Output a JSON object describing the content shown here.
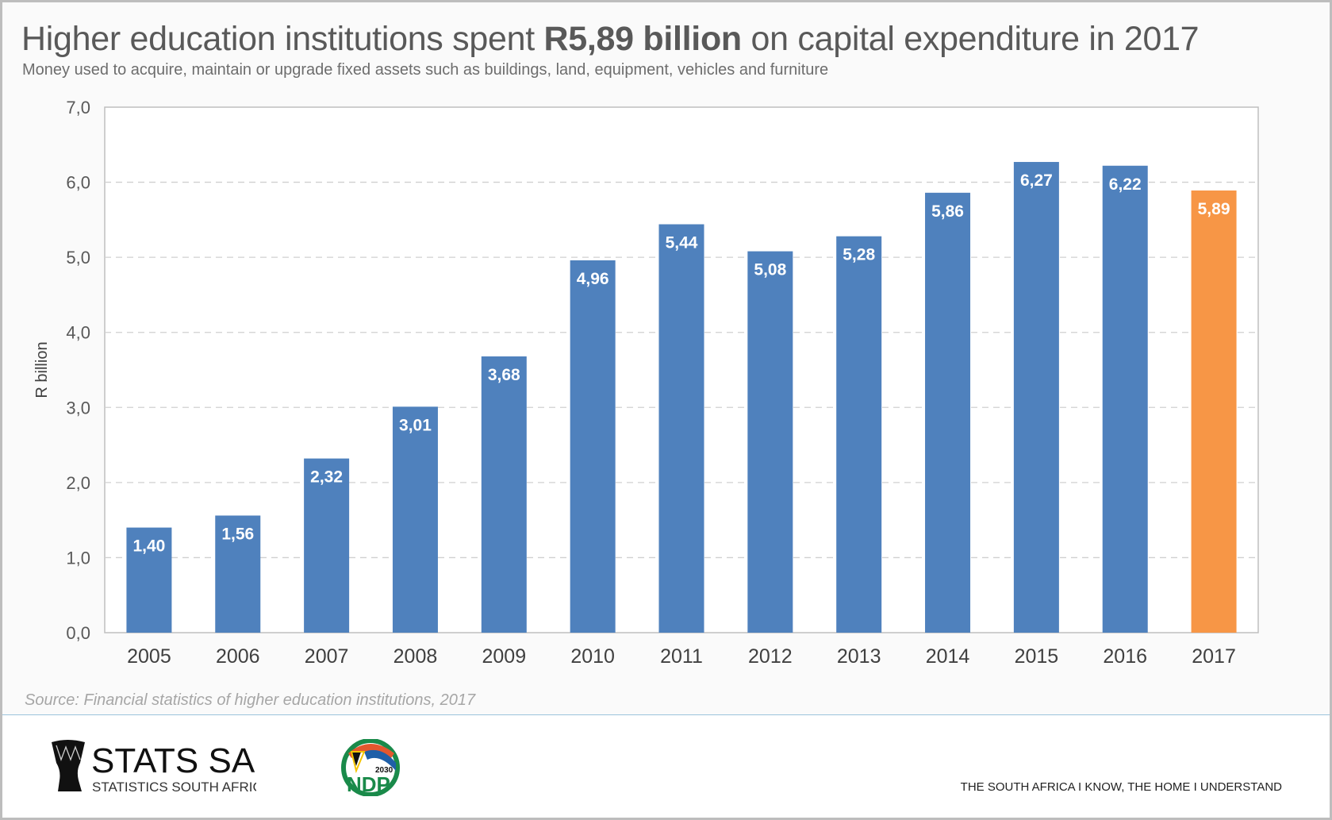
{
  "header": {
    "title_pre": "Higher education institutions spent ",
    "title_bold": "R5,89 billion",
    "title_post": " on capital expenditure in 2017",
    "subtitle": "Money used to acquire, maintain or upgrade fixed assets such as buildings, land, equipment, vehicles and furniture"
  },
  "chart_data": {
    "type": "bar",
    "title": "Higher education institutions spent R5,89 billion on capital expenditure in 2017",
    "xlabel": "",
    "ylabel": "R billion",
    "ylim": [
      0,
      7
    ],
    "yticks": [
      "0,0",
      "1,0",
      "2,0",
      "3,0",
      "4,0",
      "5,0",
      "6,0",
      "7,0"
    ],
    "grid": true,
    "categories": [
      "2005",
      "2006",
      "2007",
      "2008",
      "2009",
      "2010",
      "2011",
      "2012",
      "2013",
      "2014",
      "2015",
      "2016",
      "2017"
    ],
    "values": [
      1.4,
      1.56,
      2.32,
      3.01,
      3.68,
      4.96,
      5.44,
      5.08,
      5.28,
      5.86,
      6.27,
      6.22,
      5.89
    ],
    "labels": [
      "1,40",
      "1,56",
      "2,32",
      "3,01",
      "3,68",
      "4,96",
      "5,44",
      "5,08",
      "5,28",
      "5,86",
      "6,27",
      "6,22",
      "5,89"
    ],
    "colors": {
      "default": "#4f81bd",
      "highlight": "#f79646"
    },
    "highlight_index": 12
  },
  "source": "Source: Financial statistics of higher education institutions, 2017",
  "footer": {
    "stats_logo_main": "STATS SA",
    "stats_logo_sub": "STATISTICS SOUTH AFRICA",
    "ndp_logo_text": "NDP",
    "ndp_logo_year": "2030",
    "tagline": "THE SOUTH AFRICA I KNOW, THE HOME I UNDERSTAND"
  }
}
